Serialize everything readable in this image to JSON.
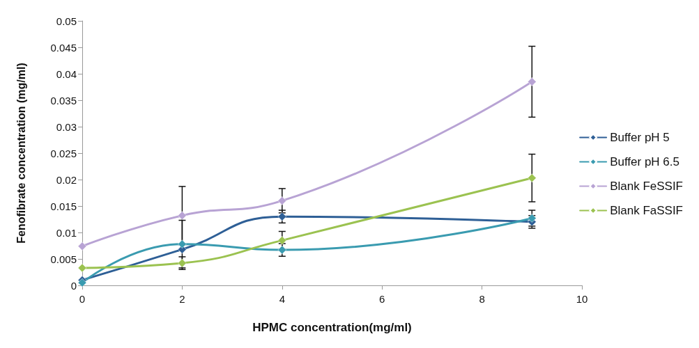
{
  "chart_data": {
    "type": "line",
    "xlabel": "HPMC concentration(mg/ml)",
    "ylabel": "Fenofibrate concentration (mg/ml)",
    "x": [
      0,
      2,
      4,
      9
    ],
    "series": [
      {
        "name": "Buffer pH 5",
        "color": "#2e5f96",
        "values": [
          0.001,
          0.0068,
          0.013,
          0.012
        ],
        "errors": [
          null,
          null,
          0.0012,
          0.0012
        ]
      },
      {
        "name": "Buffer pH 6.5",
        "color": "#3a9bb0",
        "values": [
          0.0005,
          0.0078,
          0.0067,
          0.0127
        ],
        "errors": [
          null,
          0.0045,
          0.0012,
          0.0015
        ]
      },
      {
        "name": "Blank FeSSIF",
        "color": "#b8a3d4",
        "values": [
          0.0074,
          0.0132,
          0.016,
          0.0385
        ],
        "errors": [
          null,
          0.0055,
          0.0023,
          0.0067
        ]
      },
      {
        "name": "Blank FaSSIF",
        "color": "#9bc250",
        "values": [
          0.0033,
          0.0042,
          0.0085,
          0.0203
        ],
        "errors": [
          null,
          0.0012,
          0.0017,
          0.0045
        ]
      }
    ],
    "xlim": [
      0,
      10
    ],
    "xticks": [
      0,
      2,
      4,
      6,
      8,
      10
    ],
    "ylim": [
      0,
      0.05
    ],
    "yticks": [
      0,
      0.005,
      0.01,
      0.015,
      0.02,
      0.025,
      0.03,
      0.035,
      0.04,
      0.045,
      0.05
    ],
    "grid": false,
    "legend": "right",
    "marker": "diamond",
    "line_style": "solid"
  }
}
